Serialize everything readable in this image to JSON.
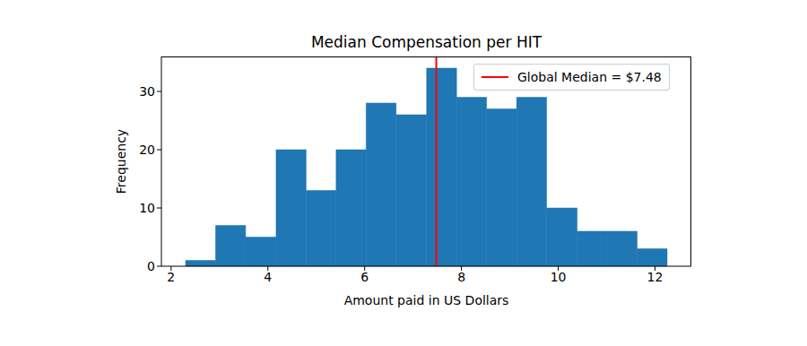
{
  "chart_data": {
    "type": "histogram",
    "title": "Median Compensation per HIT",
    "x_label": "Amount paid in US Dollars",
    "y_label": "Frequency",
    "bins": [
      2.3,
      2.92,
      3.54,
      4.17,
      4.79,
      5.41,
      6.03,
      6.65,
      7.28,
      7.9,
      8.52,
      9.14,
      9.76,
      10.39,
      11.01,
      11.63,
      12.25
    ],
    "values": [
      1,
      7,
      5,
      20,
      13,
      20,
      28,
      26,
      34,
      29,
      27,
      29,
      10,
      6,
      6,
      3
    ],
    "color": "#1f77b4",
    "xlim": [
      1.8,
      12.75
    ],
    "xticks": [
      2,
      4,
      6,
      8,
      10,
      12
    ],
    "ylim": [
      0,
      36
    ],
    "yticks": [
      0,
      10,
      20,
      30
    ],
    "grid": false,
    "legend": "upper right",
    "median_line": {
      "value": 7.48,
      "label": "Global Median = $7.48",
      "color": "#ff0000"
    }
  }
}
